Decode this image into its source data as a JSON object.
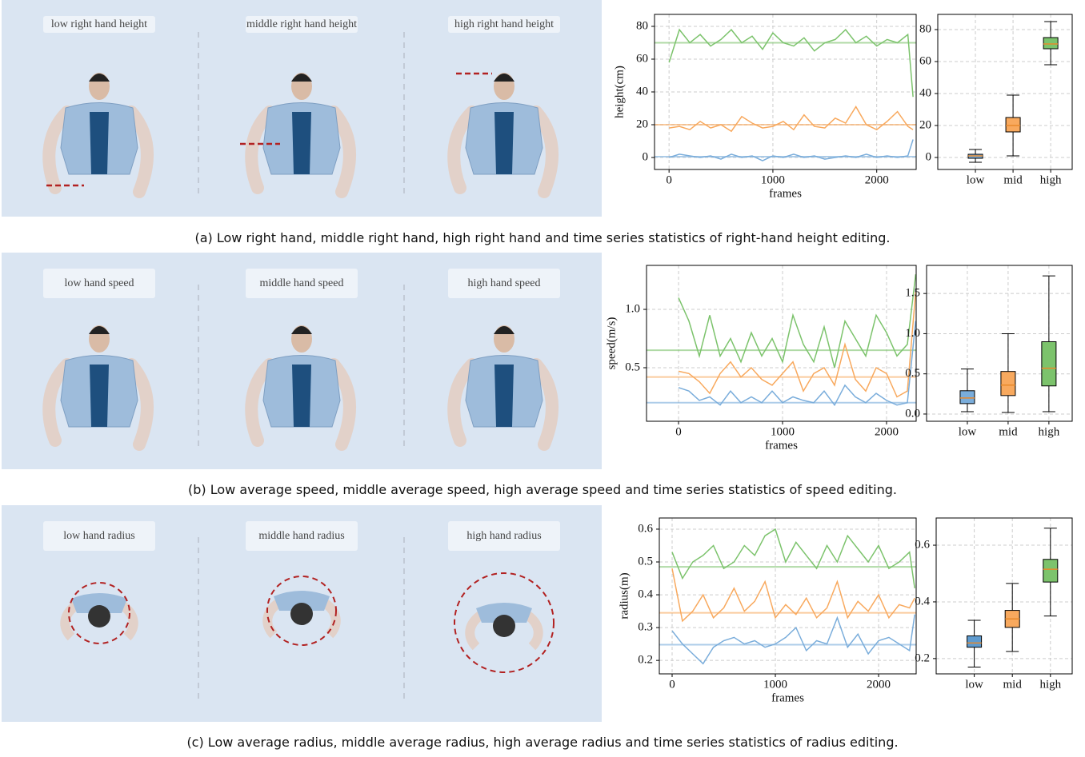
{
  "panels": [
    {
      "labels": [
        "low right hand height",
        "middle right hand height",
        "high right hand height"
      ],
      "caption": "(a) Low right hand, middle right hand, high right hand and time series statistics of right-hand height editing."
    },
    {
      "labels": [
        "low hand speed",
        "middle hand speed",
        "high hand speed"
      ],
      "caption": "(b) Low average speed, middle average speed, high average speed and time series statistics of speed editing."
    },
    {
      "labels": [
        "low hand radius",
        "middle hand radius",
        "high hand radius"
      ],
      "caption": "(c) Low average radius, middle average radius, high average radius and time series statistics of radius editing."
    }
  ],
  "chart_data": [
    {
      "type": "line",
      "xlabel": "frames",
      "ylabel": "height(cm)",
      "x": [
        0,
        100,
        200,
        300,
        400,
        500,
        600,
        700,
        800,
        900,
        1000,
        1100,
        1200,
        1300,
        1400,
        1500,
        1600,
        1700,
        1800,
        1900,
        2000,
        2100,
        2200,
        2300,
        2350
      ],
      "series": [
        {
          "color": "#7cc36c",
          "mean": 70,
          "values": [
            58,
            78,
            70,
            75,
            68,
            72,
            78,
            70,
            74,
            66,
            76,
            70,
            68,
            73,
            65,
            70,
            72,
            78,
            70,
            74,
            68,
            72,
            70,
            75,
            37
          ]
        },
        {
          "color": "#f8a95e",
          "mean": 20,
          "values": [
            18,
            19,
            17,
            22,
            18,
            20,
            16,
            25,
            21,
            18,
            19,
            22,
            17,
            26,
            19,
            18,
            24,
            21,
            31,
            20,
            17,
            22,
            28,
            19,
            17
          ]
        },
        {
          "color": "#7aaddb",
          "mean": 0.5,
          "values": [
            0,
            2,
            1,
            0,
            1,
            -1,
            2,
            0,
            1,
            -2,
            1,
            0,
            2,
            0,
            1,
            -1,
            0,
            1,
            0,
            2,
            0,
            1,
            0,
            1,
            11
          ]
        }
      ],
      "xlim": [
        -140,
        2380
      ],
      "ylim": [
        -7.3,
        87.3
      ],
      "xticks": [
        0,
        1000,
        2000
      ],
      "yticks": [
        0,
        20,
        40,
        60,
        80
      ],
      "grid": true
    },
    {
      "type": "box",
      "categories": [
        "low",
        "mid",
        "high"
      ],
      "boxes": [
        {
          "color": "#7aaddb",
          "whislo": -3,
          "q1": -0.5,
          "med": 1,
          "q3": 2,
          "whishi": 5
        },
        {
          "color": "#f8a95e",
          "whislo": 1,
          "q1": 16,
          "med": 20,
          "q3": 25,
          "whishi": 39
        },
        {
          "color": "#7cc36c",
          "whislo": 58,
          "q1": 68,
          "med": 71,
          "q3": 75,
          "whishi": 85
        }
      ],
      "ylim": [
        -7.5,
        89.5
      ],
      "yticks": [
        0,
        20,
        40,
        60,
        80
      ],
      "grid": true
    },
    {
      "type": "line",
      "xlabel": "frames",
      "ylabel": "speed(m/s)",
      "x": [
        0,
        100,
        200,
        300,
        400,
        500,
        600,
        700,
        800,
        900,
        1000,
        1100,
        1200,
        1300,
        1400,
        1500,
        1600,
        1700,
        1800,
        1900,
        2000,
        2100,
        2200,
        2280
      ],
      "series": [
        {
          "color": "#7cc36c",
          "mean": 0.65,
          "values": [
            1.1,
            0.9,
            0.6,
            0.95,
            0.6,
            0.75,
            0.55,
            0.8,
            0.6,
            0.75,
            0.55,
            0.95,
            0.7,
            0.55,
            0.85,
            0.5,
            0.9,
            0.75,
            0.6,
            0.95,
            0.8,
            0.6,
            0.7,
            1.3
          ]
        },
        {
          "color": "#f8a95e",
          "mean": 0.42,
          "values": [
            0.47,
            0.45,
            0.38,
            0.28,
            0.45,
            0.55,
            0.42,
            0.5,
            0.4,
            0.35,
            0.45,
            0.55,
            0.3,
            0.45,
            0.5,
            0.35,
            0.7,
            0.4,
            0.3,
            0.5,
            0.45,
            0.25,
            0.3,
            1.15
          ]
        },
        {
          "color": "#7aaddb",
          "mean": 0.2,
          "values": [
            0.33,
            0.3,
            0.22,
            0.25,
            0.18,
            0.3,
            0.2,
            0.25,
            0.2,
            0.3,
            0.2,
            0.25,
            0.22,
            0.2,
            0.3,
            0.18,
            0.35,
            0.25,
            0.2,
            0.28,
            0.22,
            0.18,
            0.2,
            0.9
          ]
        }
      ],
      "xlim": [
        -308,
        2285
      ],
      "ylim": [
        0.041,
        1.377
      ],
      "xticks": [
        0,
        1000,
        2000
      ],
      "yticks": [
        0.5,
        {
          "value": 1,
          "label": "1.0"
        }
      ],
      "grid": true
    },
    {
      "type": "box",
      "categories": [
        "low",
        "mid",
        "high"
      ],
      "boxes": [
        {
          "color": "#7aaddb",
          "whislo": 0.03,
          "q1": 0.13,
          "med": 0.2,
          "q3": 0.29,
          "whishi": 0.56
        },
        {
          "color": "#f8a95e",
          "whislo": 0.02,
          "q1": 0.23,
          "med": 0.36,
          "q3": 0.53,
          "whishi": 1.0
        },
        {
          "color": "#7cc36c",
          "whislo": 0.03,
          "q1": 0.35,
          "med": 0.57,
          "q3": 0.9,
          "whishi": 1.72
        }
      ],
      "ylim": [
        -0.09,
        1.85
      ],
      "yticks": [
        {
          "value": 0,
          "label": "0.0"
        },
        0.5,
        {
          "value": 1,
          "label": "1.0"
        },
        1.5
      ],
      "grid": true
    },
    {
      "type": "line",
      "xlabel": "frames",
      "ylabel": "radius(m)",
      "x": [
        0,
        100,
        200,
        300,
        400,
        500,
        600,
        700,
        800,
        900,
        1000,
        1100,
        1200,
        1300,
        1400,
        1500,
        1600,
        1700,
        1800,
        1900,
        2000,
        2100,
        2200,
        2300,
        2350
      ],
      "series": [
        {
          "color": "#7cc36c",
          "mean": 0.485,
          "values": [
            0.53,
            0.45,
            0.5,
            0.52,
            0.55,
            0.48,
            0.5,
            0.55,
            0.52,
            0.58,
            0.6,
            0.5,
            0.56,
            0.52,
            0.48,
            0.55,
            0.5,
            0.58,
            0.54,
            0.5,
            0.55,
            0.48,
            0.5,
            0.53,
            0.42
          ]
        },
        {
          "color": "#f8a95e",
          "mean": 0.345,
          "values": [
            0.48,
            0.32,
            0.35,
            0.4,
            0.33,
            0.36,
            0.42,
            0.35,
            0.38,
            0.44,
            0.33,
            0.37,
            0.34,
            0.39,
            0.33,
            0.36,
            0.44,
            0.33,
            0.38,
            0.35,
            0.4,
            0.33,
            0.37,
            0.36,
            0.39
          ]
        },
        {
          "color": "#7aaddb",
          "mean": 0.248,
          "values": [
            0.29,
            0.25,
            0.22,
            0.19,
            0.24,
            0.26,
            0.27,
            0.25,
            0.26,
            0.24,
            0.25,
            0.27,
            0.3,
            0.23,
            0.26,
            0.25,
            0.33,
            0.24,
            0.28,
            0.22,
            0.26,
            0.27,
            0.25,
            0.23,
            0.34
          ]
        }
      ],
      "xlim": [
        -124,
        2364
      ],
      "ylim": [
        0.159,
        0.634
      ],
      "xticks": [
        0,
        1000,
        2000
      ],
      "yticks": [
        0.2,
        0.3,
        0.4,
        0.5,
        0.6
      ],
      "grid": true
    },
    {
      "type": "box",
      "categories": [
        "low",
        "mid",
        "high"
      ],
      "boxes": [
        {
          "color": "#5f9bcf",
          "whislo": 0.17,
          "q1": 0.24,
          "med": 0.255,
          "q3": 0.28,
          "whishi": 0.335
        },
        {
          "color": "#f8a95e",
          "whislo": 0.225,
          "q1": 0.31,
          "med": 0.34,
          "q3": 0.37,
          "whishi": 0.465
        },
        {
          "color": "#7cc36c",
          "whislo": 0.35,
          "q1": 0.47,
          "med": 0.515,
          "q3": 0.55,
          "whishi": 0.66
        }
      ],
      "ylim": [
        0.146,
        0.696
      ],
      "yticks": [
        0.2,
        0.4,
        0.6
      ],
      "grid": true
    }
  ]
}
